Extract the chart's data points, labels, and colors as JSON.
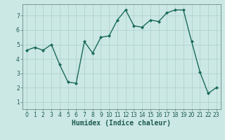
{
  "x": [
    0,
    1,
    2,
    3,
    4,
    5,
    6,
    7,
    8,
    9,
    10,
    11,
    12,
    13,
    14,
    15,
    16,
    17,
    18,
    19,
    20,
    21,
    22,
    23
  ],
  "y": [
    4.6,
    4.8,
    4.6,
    5.0,
    3.6,
    2.4,
    2.3,
    5.2,
    4.4,
    5.5,
    5.6,
    6.7,
    7.4,
    6.3,
    6.2,
    6.7,
    6.6,
    7.2,
    7.4,
    7.4,
    5.2,
    3.1,
    1.6,
    2.0
  ],
  "line_color": "#1a6b5a",
  "marker": "D",
  "marker_size": 2.0,
  "bg_color": "#cce8e4",
  "grid_color": "#aacfca",
  "xlabel": "Humidex (Indice chaleur)",
  "xlim": [
    -0.5,
    23.5
  ],
  "ylim": [
    0.5,
    7.8
  ],
  "yticks": [
    1,
    2,
    3,
    4,
    5,
    6,
    7
  ],
  "xticks": [
    0,
    1,
    2,
    3,
    4,
    5,
    6,
    7,
    8,
    9,
    10,
    11,
    12,
    13,
    14,
    15,
    16,
    17,
    18,
    19,
    20,
    21,
    22,
    23
  ],
  "tick_fontsize": 5.5,
  "xlabel_fontsize": 7.0,
  "line_width": 1.0
}
